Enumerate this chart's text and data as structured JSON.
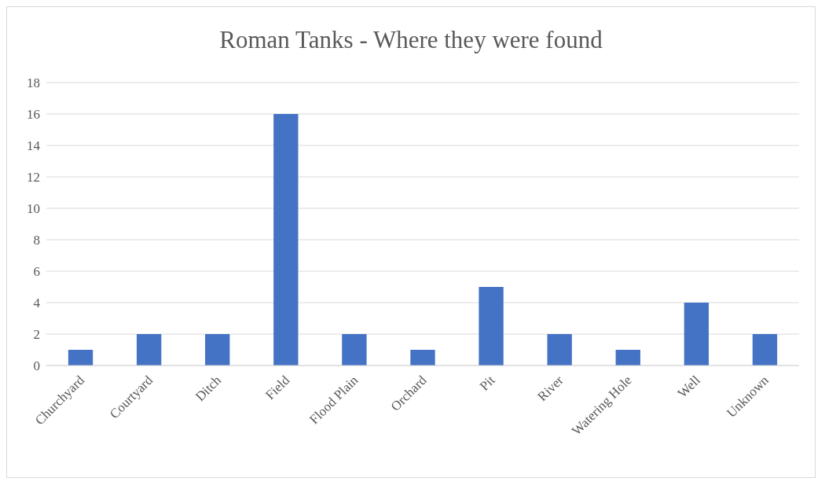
{
  "chart_data": {
    "type": "bar",
    "title": "Roman Tanks - Where they were found",
    "categories": [
      "Churchyard",
      "Courtyard",
      "Ditch",
      "Field",
      "Flood Plain",
      "Orchard",
      "Pit",
      "River",
      "Watering Hole",
      "Well",
      "Unknown"
    ],
    "values": [
      1,
      2,
      2,
      16,
      2,
      1,
      5,
      2,
      1,
      4,
      2
    ],
    "color": "#4472c4",
    "ylim": [
      0,
      18
    ],
    "yticks": [
      0,
      2,
      4,
      6,
      8,
      10,
      12,
      14,
      16,
      18
    ],
    "grid": "y",
    "legend": false
  }
}
